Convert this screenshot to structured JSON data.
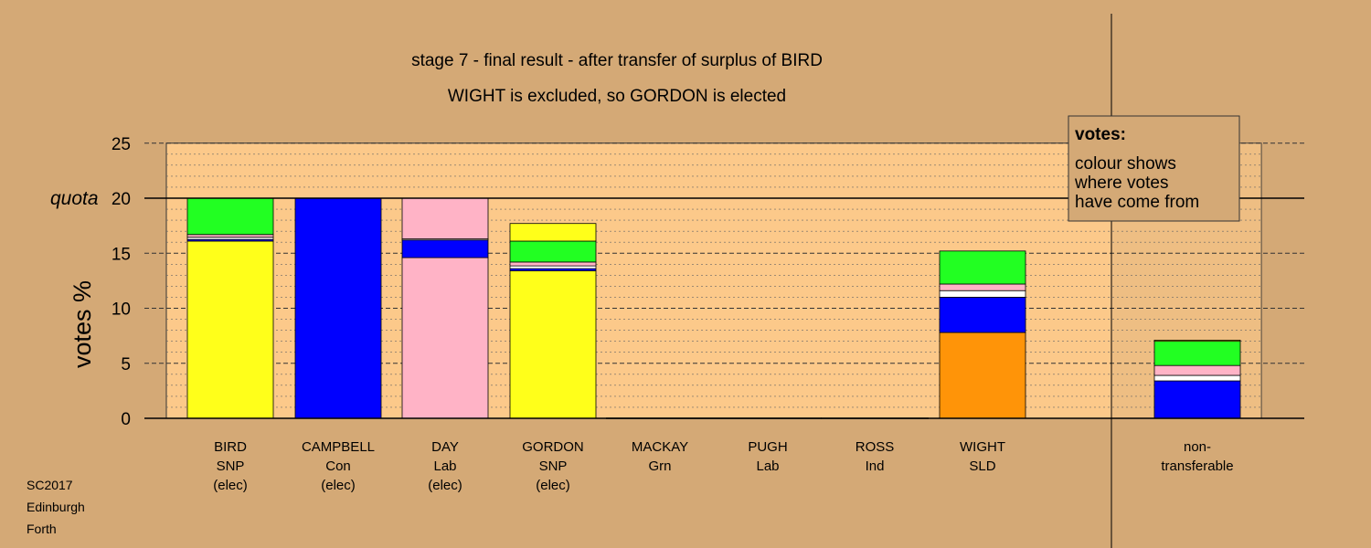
{
  "colors": {
    "background": "#d4a976",
    "plot_area": "#fcc98a",
    "SNP": "#ffff1a",
    "Con": "#0000ff",
    "Lab": "#ffb3c6",
    "Grn": "#22ff22",
    "SLD": "#ff9408",
    "Ind": "#ffffff"
  },
  "chart_data": {
    "type": "bar",
    "title": "stage 7 - final result - after transfer of surplus of BIRD",
    "subtitle": "WIGHT is excluded, so GORDON is elected",
    "ylabel": "votes %",
    "ylim": [
      0,
      25
    ],
    "yticks": [
      "0",
      "5",
      "10",
      "15",
      "20",
      "25"
    ],
    "quota_label": "quota",
    "quota": 20,
    "grid": true,
    "legend_position": "top-right",
    "legend": {
      "title": "votes:",
      "lines": [
        "colour shows",
        "where votes",
        "have come from"
      ]
    },
    "candidates": [
      {
        "name": "BIRD",
        "party": "SNP",
        "status": "(elec)",
        "segments": [
          {
            "from": "SNP",
            "value": 16.1
          },
          {
            "from": "Con",
            "value": 0.15
          },
          {
            "from": "Ind",
            "value": 0.2
          },
          {
            "from": "Lab",
            "value": 0.25
          },
          {
            "from": "Grn",
            "value": 3.3
          }
        ]
      },
      {
        "name": "CAMPBELL",
        "party": "Con",
        "status": "(elec)",
        "segments": [
          {
            "from": "Con",
            "value": 20.0
          }
        ]
      },
      {
        "name": "DAY",
        "party": "Lab",
        "status": "(elec)",
        "segments": [
          {
            "from": "Lab",
            "value": 14.6
          },
          {
            "from": "Con",
            "value": 1.6
          },
          {
            "from": "Ind",
            "value": 0.1
          },
          {
            "from": "Lab",
            "value": 3.7
          }
        ]
      },
      {
        "name": "GORDON",
        "party": "SNP",
        "status": "(elec)",
        "segments": [
          {
            "from": "SNP",
            "value": 13.4
          },
          {
            "from": "Con",
            "value": 0.2
          },
          {
            "from": "Ind",
            "value": 0.25
          },
          {
            "from": "Lab",
            "value": 0.35
          },
          {
            "from": "Grn",
            "value": 1.9
          },
          {
            "from": "SNP",
            "value": 1.6
          }
        ]
      },
      {
        "name": "MACKAY",
        "party": "Grn",
        "status": "",
        "segments": []
      },
      {
        "name": "PUGH",
        "party": "Lab",
        "status": "",
        "segments": []
      },
      {
        "name": "ROSS",
        "party": "Ind",
        "status": "",
        "segments": []
      },
      {
        "name": "WIGHT",
        "party": "SLD",
        "status": "",
        "segments": [
          {
            "from": "SLD",
            "value": 7.8
          },
          {
            "from": "Con",
            "value": 3.2
          },
          {
            "from": "Ind",
            "value": 0.6
          },
          {
            "from": "Lab",
            "value": 0.6
          },
          {
            "from": "Grn",
            "value": 3.0
          }
        ]
      },
      {
        "name": "non-",
        "party": "transferable",
        "status": "",
        "segments": [
          {
            "from": "Con",
            "value": 3.4
          },
          {
            "from": "Ind",
            "value": 0.5
          },
          {
            "from": "Lab",
            "value": 0.9
          },
          {
            "from": "Grn",
            "value": 2.2
          },
          {
            "from": "SNP",
            "value": 0.1
          }
        ]
      }
    ]
  },
  "footer": [
    "SC2017",
    "Edinburgh",
    "Forth"
  ]
}
